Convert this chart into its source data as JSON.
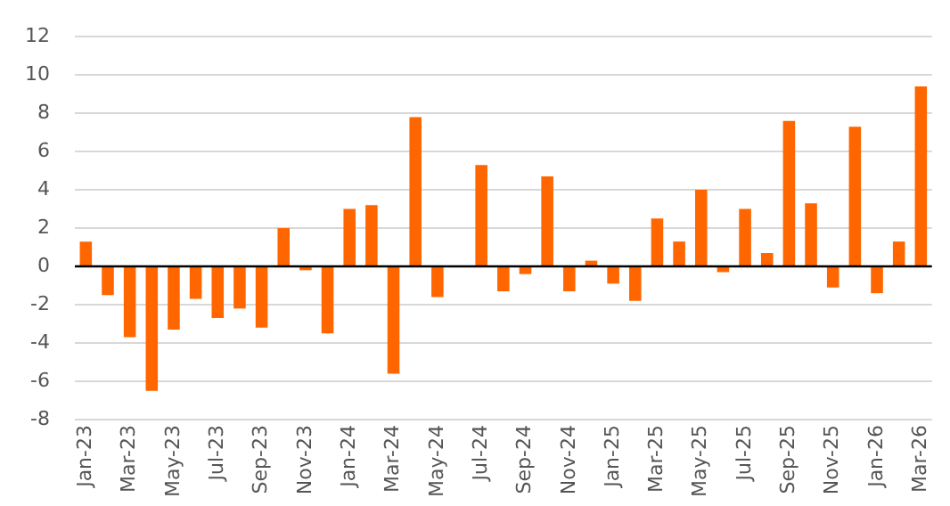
{
  "chart_data": {
    "type": "bar",
    "categories": [
      "Jan-23",
      null,
      "Mar-23",
      null,
      "May-23",
      null,
      "Jul-23",
      null,
      "Sep-23",
      null,
      "Nov-23",
      null,
      "Jan-24",
      null,
      "Mar-24",
      null,
      "May-24",
      null,
      "Jul-24",
      null,
      "Sep-24",
      null,
      "Nov-24",
      null,
      "Jan-25",
      null,
      "Mar-25",
      null,
      "May-25",
      null,
      "Jul-25",
      null,
      "Sep-25",
      null,
      "Nov-25",
      null,
      "Jan-26",
      null,
      "Mar-26"
    ],
    "values": [
      1.3,
      -1.5,
      -3.7,
      -6.5,
      -3.3,
      -1.7,
      -2.7,
      -2.2,
      -3.2,
      2.0,
      -0.2,
      -3.5,
      3.0,
      3.2,
      -5.6,
      7.8,
      -1.6,
      null,
      5.3,
      -1.3,
      -0.4,
      4.7,
      -1.3,
      0.3,
      -0.9,
      -1.8,
      2.5,
      1.3,
      4.0,
      -0.3,
      3.0,
      0.7,
      7.6,
      3.3,
      -1.1,
      7.3,
      -1.4,
      1.3,
      9.4
    ],
    "color": "#ff6600",
    "ylim": [
      -8,
      12
    ],
    "yticks": [
      -8,
      -6,
      -4,
      -2,
      0,
      2,
      4,
      6,
      8,
      10,
      12
    ],
    "grid": "y"
  }
}
